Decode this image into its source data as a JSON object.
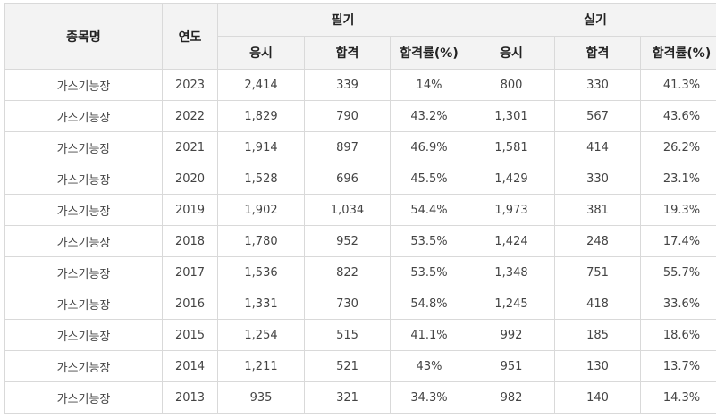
{
  "table": {
    "headers": {
      "name": "종목명",
      "year": "연도",
      "written": "필기",
      "practical": "실기",
      "applicants": "응시",
      "passed": "합격",
      "rate": "합격률(%)"
    },
    "rows": [
      {
        "name": "가스기능장",
        "year": "2023",
        "w_app": "2,414",
        "w_pass": "339",
        "w_rate": "14%",
        "p_app": "800",
        "p_pass": "330",
        "p_rate": "41.3%"
      },
      {
        "name": "가스기능장",
        "year": "2022",
        "w_app": "1,829",
        "w_pass": "790",
        "w_rate": "43.2%",
        "p_app": "1,301",
        "p_pass": "567",
        "p_rate": "43.6%"
      },
      {
        "name": "가스기능장",
        "year": "2021",
        "w_app": "1,914",
        "w_pass": "897",
        "w_rate": "46.9%",
        "p_app": "1,581",
        "p_pass": "414",
        "p_rate": "26.2%"
      },
      {
        "name": "가스기능장",
        "year": "2020",
        "w_app": "1,528",
        "w_pass": "696",
        "w_rate": "45.5%",
        "p_app": "1,429",
        "p_pass": "330",
        "p_rate": "23.1%"
      },
      {
        "name": "가스기능장",
        "year": "2019",
        "w_app": "1,902",
        "w_pass": "1,034",
        "w_rate": "54.4%",
        "p_app": "1,973",
        "p_pass": "381",
        "p_rate": "19.3%"
      },
      {
        "name": "가스기능장",
        "year": "2018",
        "w_app": "1,780",
        "w_pass": "952",
        "w_rate": "53.5%",
        "p_app": "1,424",
        "p_pass": "248",
        "p_rate": "17.4%"
      },
      {
        "name": "가스기능장",
        "year": "2017",
        "w_app": "1,536",
        "w_pass": "822",
        "w_rate": "53.5%",
        "p_app": "1,348",
        "p_pass": "751",
        "p_rate": "55.7%"
      },
      {
        "name": "가스기능장",
        "year": "2016",
        "w_app": "1,331",
        "w_pass": "730",
        "w_rate": "54.8%",
        "p_app": "1,245",
        "p_pass": "418",
        "p_rate": "33.6%"
      },
      {
        "name": "가스기능장",
        "year": "2015",
        "w_app": "1,254",
        "w_pass": "515",
        "w_rate": "41.1%",
        "p_app": "992",
        "p_pass": "185",
        "p_rate": "18.6%"
      },
      {
        "name": "가스기능장",
        "year": "2014",
        "w_app": "1,211",
        "w_pass": "521",
        "w_rate": "43%",
        "p_app": "951",
        "p_pass": "130",
        "p_rate": "13.7%"
      },
      {
        "name": "가스기능장",
        "year": "2013",
        "w_app": "935",
        "w_pass": "321",
        "w_rate": "34.3%",
        "p_app": "982",
        "p_pass": "140",
        "p_rate": "14.3%"
      }
    ]
  }
}
